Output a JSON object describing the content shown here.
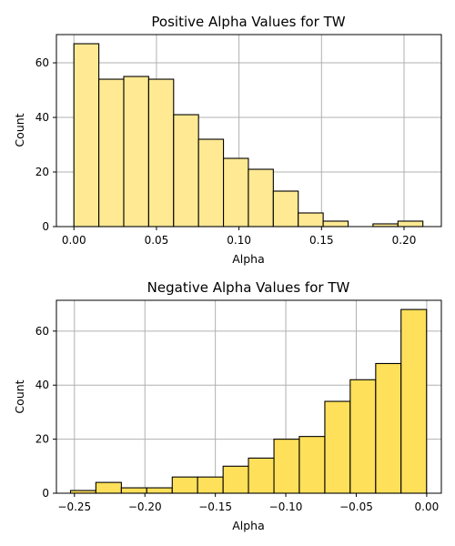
{
  "chart_data": [
    {
      "type": "bar",
      "title": "Positive Alpha Values for TW",
      "xlabel": "Alpha",
      "ylabel": "Count",
      "xlim": [
        -0.0106,
        0.2226
      ],
      "ylim": [
        0,
        70.35
      ],
      "xticks": [
        0.0,
        0.05,
        0.1,
        0.15,
        0.2
      ],
      "xtick_labels": [
        "0.00",
        "0.05",
        "0.10",
        "0.15",
        "0.20"
      ],
      "yticks": [
        0,
        20,
        40,
        60
      ],
      "ytick_labels": [
        "0",
        "20",
        "40",
        "60"
      ],
      "bin_edges": [
        0.0,
        0.0151,
        0.0302,
        0.0453,
        0.0604,
        0.0755,
        0.0906,
        0.1057,
        0.1208,
        0.1359,
        0.151,
        0.1661,
        0.1812,
        0.1963,
        0.2114
      ],
      "values": [
        67,
        54,
        55,
        54,
        41,
        32,
        25,
        21,
        13,
        5,
        2,
        0,
        1,
        2
      ],
      "bar_color": "#ffe993",
      "grid": true
    },
    {
      "type": "bar",
      "title": "Negative Alpha Values for TW",
      "xlabel": "Alpha",
      "ylabel": "Count",
      "xlim": [
        -0.2628,
        0.0104
      ],
      "ylim": [
        0,
        71.4
      ],
      "xticks": [
        -0.25,
        -0.2,
        -0.15,
        -0.1,
        -0.05,
        0.0
      ],
      "xtick_labels": [
        "−0.25",
        "−0.20",
        "−0.15",
        "−0.10",
        "−0.05",
        "0.00"
      ],
      "yticks": [
        0,
        20,
        40,
        60
      ],
      "ytick_labels": [
        "0",
        "20",
        "40",
        "60"
      ],
      "bin_edges": [
        -0.2528,
        -0.2348,
        -0.2167,
        -0.1987,
        -0.1806,
        -0.1626,
        -0.1445,
        -0.1265,
        -0.1084,
        -0.0904,
        -0.0723,
        -0.0543,
        -0.0362,
        -0.0182,
        -0.0001
      ],
      "values": [
        1,
        4,
        2,
        2,
        6,
        6,
        10,
        13,
        20,
        21,
        34,
        42,
        48,
        68
      ],
      "bar_color": "#ffe05a",
      "grid": true
    }
  ]
}
